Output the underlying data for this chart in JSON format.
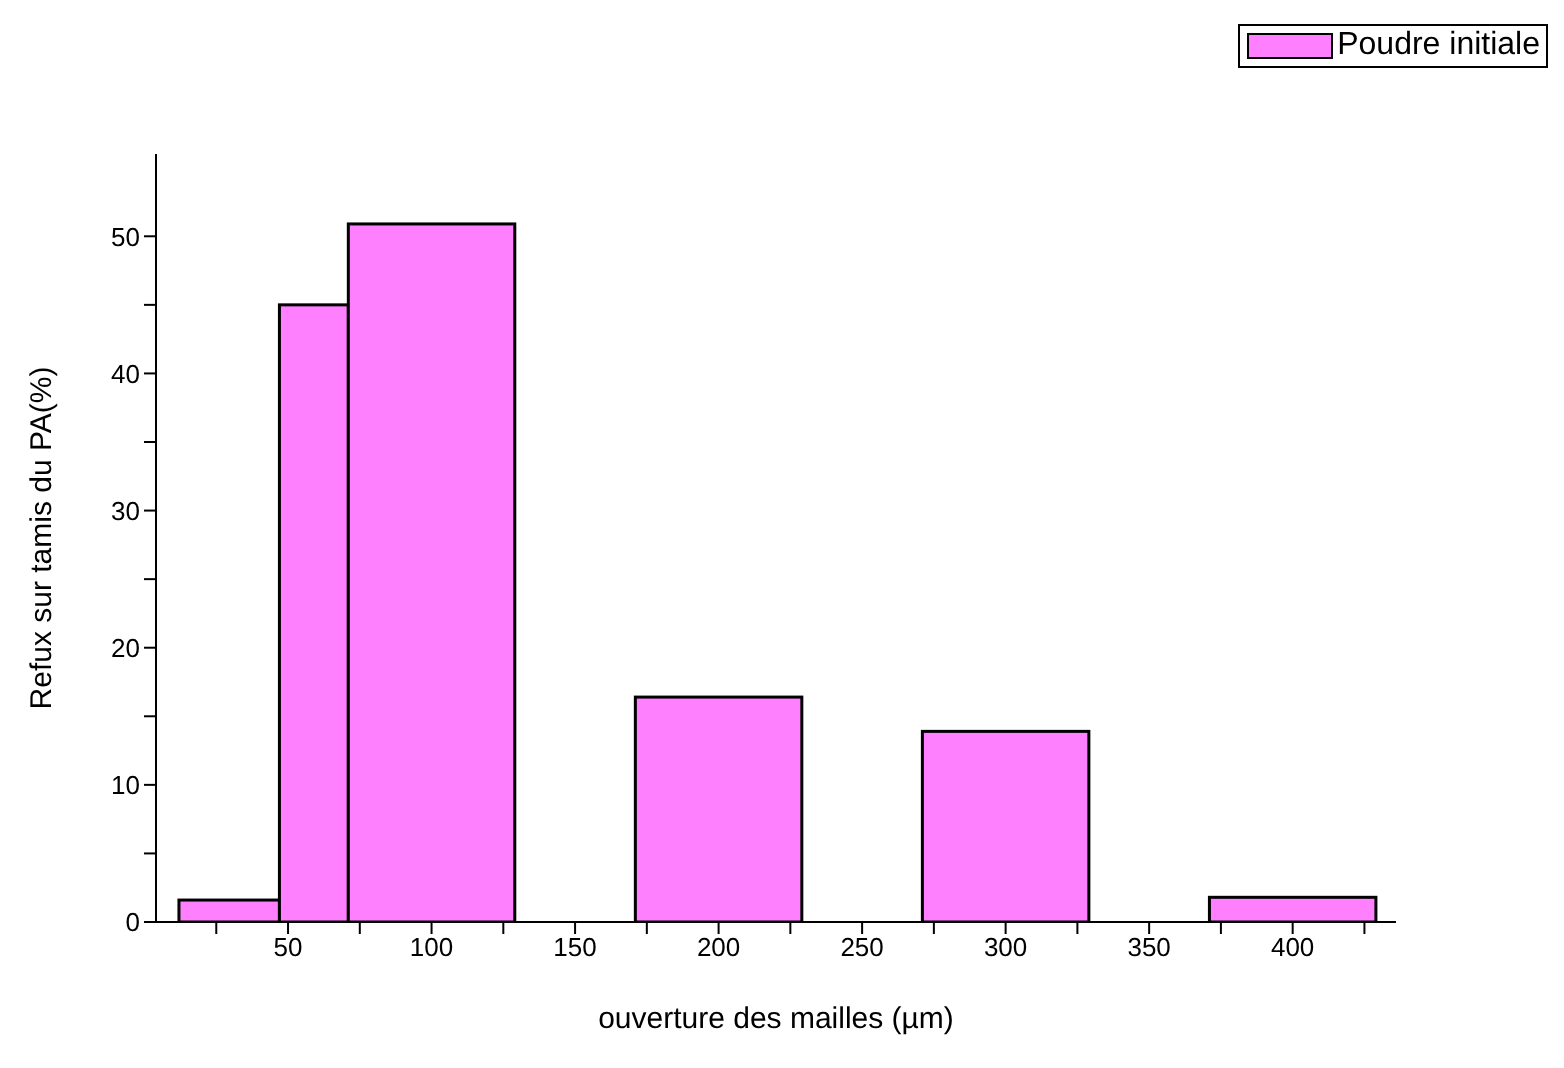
{
  "chart_data": {
    "type": "histogram",
    "xlabel": "ouverture des mailles (µm)",
    "ylabel": "Refux sur tamis du PA(%)",
    "bins": [
      12,
      47,
      71,
      129,
      171,
      229,
      271,
      329,
      371,
      429
    ],
    "series": [
      {
        "name": "Poudre initiale",
        "color": "#ff80ff",
        "values": [
          1.6,
          45,
          50.9,
          0,
          16.4,
          0,
          13.9,
          0,
          1.8
        ]
      }
    ],
    "xlim": [
      4,
      436
    ],
    "ylim": [
      0,
      56
    ],
    "xticks": [
      {
        "value": 25,
        "label": null
      },
      50,
      {
        "value": 75,
        "label": null
      },
      100,
      {
        "value": 125,
        "label": null
      },
      150,
      {
        "value": 175,
        "label": null
      },
      200,
      {
        "value": 225,
        "label": null
      },
      250,
      {
        "value": 275,
        "label": null
      },
      300,
      {
        "value": 325,
        "label": null
      },
      350,
      {
        "value": 375,
        "label": null
      },
      400,
      {
        "value": 425,
        "label": null
      }
    ],
    "yticks": [
      0,
      {
        "value": 5,
        "label": null
      },
      10,
      {
        "value": 15,
        "label": null
      },
      20,
      {
        "value": 25,
        "label": null
      },
      30,
      {
        "value": 35,
        "label": null
      },
      40,
      {
        "value": 45,
        "label": null
      },
      50
    ],
    "grid": false,
    "legend": "top right"
  }
}
